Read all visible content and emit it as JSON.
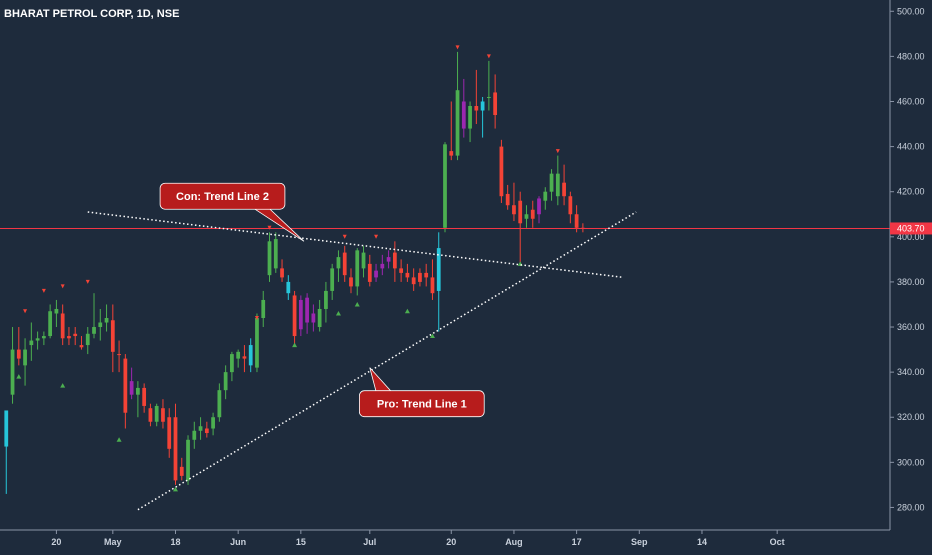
{
  "chart_data": {
    "type": "candlestick",
    "title": "BHARAT PETROL CORP, 1D, NSE",
    "ylim": [
      270,
      505
    ],
    "yticks": [
      "280.00",
      "300.00",
      "320.00",
      "340.00",
      "360.00",
      "380.00",
      "400.00",
      "420.00",
      "440.00",
      "460.00",
      "480.00",
      "500.00"
    ],
    "xlim": [
      -2,
      140
    ],
    "xticks": [
      {
        "label": "20",
        "at": 7
      },
      {
        "label": "May",
        "at": 16
      },
      {
        "label": "18",
        "at": 26
      },
      {
        "label": "Jun",
        "at": 36
      },
      {
        "label": "15",
        "at": 46
      },
      {
        "label": "Jul",
        "at": 57
      },
      {
        "label": "20",
        "at": 70
      },
      {
        "label": "Aug",
        "at": 80
      },
      {
        "label": "17",
        "at": 90
      },
      {
        "label": "Sep",
        "at": 100
      },
      {
        "label": "14",
        "at": 110
      },
      {
        "label": "Oct",
        "at": 122
      }
    ],
    "current_price": {
      "value": 403.7,
      "label": "403.70",
      "color": "#f23645"
    },
    "colors": {
      "background": "#1e2b3c",
      "up": "#4caf50",
      "down": "#f44336",
      "cyan": "#26c6da",
      "purple": "#9c27b0",
      "trendline": "#ffffff",
      "callout": "#b71c1c"
    },
    "candles": [
      {
        "t": -1,
        "o": 307,
        "h": 322,
        "l": 286,
        "c": 323,
        "k": "cyan"
      },
      {
        "t": 0,
        "o": 330,
        "h": 360,
        "l": 326,
        "c": 350,
        "k": "up"
      },
      {
        "t": 1,
        "o": 350,
        "h": 360,
        "l": 343,
        "c": 346,
        "k": "down"
      },
      {
        "t": 2,
        "o": 343,
        "h": 355,
        "l": 334,
        "c": 350,
        "k": "up"
      },
      {
        "t": 3,
        "o": 352,
        "h": 362,
        "l": 345,
        "c": 354,
        "k": "up"
      },
      {
        "t": 4,
        "o": 354,
        "h": 358,
        "l": 350,
        "c": 355,
        "k": "up"
      },
      {
        "t": 5,
        "o": 355,
        "h": 358,
        "l": 352,
        "c": 356,
        "k": "up"
      },
      {
        "t": 6,
        "o": 356,
        "h": 370,
        "l": 355,
        "c": 367,
        "k": "up"
      },
      {
        "t": 7,
        "o": 368,
        "h": 372,
        "l": 360,
        "c": 366,
        "k": "up"
      },
      {
        "t": 8,
        "o": 366,
        "h": 370,
        "l": 352,
        "c": 355,
        "k": "down"
      },
      {
        "t": 9,
        "o": 355,
        "h": 360,
        "l": 352,
        "c": 356,
        "k": "down"
      },
      {
        "t": 10,
        "o": 357,
        "h": 360,
        "l": 352,
        "c": 356,
        "k": "down"
      },
      {
        "t": 11,
        "o": 352,
        "h": 356,
        "l": 350,
        "c": 351,
        "k": "down"
      },
      {
        "t": 12,
        "o": 352,
        "h": 360,
        "l": 348,
        "c": 357,
        "k": "up"
      },
      {
        "t": 13,
        "o": 357,
        "h": 375,
        "l": 355,
        "c": 360,
        "k": "up"
      },
      {
        "t": 14,
        "o": 360,
        "h": 368,
        "l": 354,
        "c": 362,
        "k": "up"
      },
      {
        "t": 15,
        "o": 362,
        "h": 370,
        "l": 358,
        "c": 364,
        "k": "up"
      },
      {
        "t": 16,
        "o": 363,
        "h": 370,
        "l": 340,
        "c": 349,
        "k": "down"
      },
      {
        "t": 17,
        "o": 348,
        "h": 354,
        "l": 340,
        "c": 348,
        "k": "down"
      },
      {
        "t": 18,
        "o": 346,
        "h": 348,
        "l": 315,
        "c": 322,
        "k": "down"
      },
      {
        "t": 19,
        "o": 336,
        "h": 342,
        "l": 328,
        "c": 330,
        "k": "purple"
      },
      {
        "t": 20,
        "o": 330,
        "h": 336,
        "l": 320,
        "c": 333,
        "k": "up"
      },
      {
        "t": 21,
        "o": 333,
        "h": 335,
        "l": 322,
        "c": 325,
        "k": "down"
      },
      {
        "t": 22,
        "o": 324,
        "h": 326,
        "l": 316,
        "c": 318,
        "k": "down"
      },
      {
        "t": 23,
        "o": 318,
        "h": 326,
        "l": 316,
        "c": 325,
        "k": "up"
      },
      {
        "t": 24,
        "o": 324,
        "h": 328,
        "l": 315,
        "c": 318,
        "k": "down"
      },
      {
        "t": 25,
        "o": 320,
        "h": 324,
        "l": 302,
        "c": 306,
        "k": "down"
      },
      {
        "t": 26,
        "o": 320,
        "h": 326,
        "l": 290,
        "c": 292,
        "k": "down"
      },
      {
        "t": 27,
        "o": 298,
        "h": 302,
        "l": 292,
        "c": 294,
        "k": "down"
      },
      {
        "t": 28,
        "o": 292,
        "h": 312,
        "l": 290,
        "c": 310,
        "k": "up"
      },
      {
        "t": 29,
        "o": 310,
        "h": 318,
        "l": 306,
        "c": 314,
        "k": "up"
      },
      {
        "t": 30,
        "o": 314,
        "h": 320,
        "l": 310,
        "c": 316,
        "k": "up"
      },
      {
        "t": 31,
        "o": 315,
        "h": 318,
        "l": 311,
        "c": 313,
        "k": "down"
      },
      {
        "t": 32,
        "o": 315,
        "h": 322,
        "l": 312,
        "c": 320,
        "k": "up"
      },
      {
        "t": 33,
        "o": 320,
        "h": 335,
        "l": 318,
        "c": 332,
        "k": "up"
      },
      {
        "t": 34,
        "o": 332,
        "h": 343,
        "l": 328,
        "c": 340,
        "k": "up"
      },
      {
        "t": 35,
        "o": 340,
        "h": 349,
        "l": 336,
        "c": 348,
        "k": "up"
      },
      {
        "t": 36,
        "o": 346,
        "h": 350,
        "l": 342,
        "c": 349,
        "k": "up"
      },
      {
        "t": 37,
        "o": 347,
        "h": 352,
        "l": 340,
        "c": 346,
        "k": "down"
      },
      {
        "t": 38,
        "o": 343,
        "h": 355,
        "l": 340,
        "c": 352,
        "k": "cyan"
      },
      {
        "t": 39,
        "o": 342,
        "h": 366,
        "l": 340,
        "c": 364,
        "k": "up"
      },
      {
        "t": 40,
        "o": 364,
        "h": 376,
        "l": 360,
        "c": 372,
        "k": "up"
      },
      {
        "t": 41,
        "o": 383,
        "h": 402,
        "l": 380,
        "c": 398,
        "k": "up"
      },
      {
        "t": 42,
        "o": 399,
        "h": 402,
        "l": 384,
        "c": 386,
        "k": "up"
      },
      {
        "t": 43,
        "o": 386,
        "h": 390,
        "l": 380,
        "c": 382,
        "k": "down"
      },
      {
        "t": 44,
        "o": 380,
        "h": 383,
        "l": 372,
        "c": 375,
        "k": "cyan"
      },
      {
        "t": 45,
        "o": 374,
        "h": 376,
        "l": 352,
        "c": 356,
        "k": "down"
      },
      {
        "t": 46,
        "o": 372,
        "h": 374,
        "l": 356,
        "c": 359,
        "k": "purple"
      },
      {
        "t": 47,
        "o": 373,
        "h": 375,
        "l": 357,
        "c": 362,
        "k": "purple"
      },
      {
        "t": 48,
        "o": 366,
        "h": 370,
        "l": 358,
        "c": 362,
        "k": "purple"
      },
      {
        "t": 49,
        "o": 360,
        "h": 372,
        "l": 358,
        "c": 368,
        "k": "up"
      },
      {
        "t": 50,
        "o": 368,
        "h": 380,
        "l": 362,
        "c": 376,
        "k": "up"
      },
      {
        "t": 51,
        "o": 376,
        "h": 388,
        "l": 372,
        "c": 386,
        "k": "up"
      },
      {
        "t": 52,
        "o": 386,
        "h": 394,
        "l": 380,
        "c": 391,
        "k": "up"
      },
      {
        "t": 53,
        "o": 393,
        "h": 396,
        "l": 380,
        "c": 383,
        "k": "down"
      },
      {
        "t": 54,
        "o": 382,
        "h": 386,
        "l": 375,
        "c": 378,
        "k": "down"
      },
      {
        "t": 55,
        "o": 378,
        "h": 395,
        "l": 374,
        "c": 394,
        "k": "up"
      },
      {
        "t": 56,
        "o": 393,
        "h": 396,
        "l": 382,
        "c": 386,
        "k": "up"
      },
      {
        "t": 57,
        "o": 388,
        "h": 392,
        "l": 378,
        "c": 380,
        "k": "down"
      },
      {
        "t": 58,
        "o": 382,
        "h": 388,
        "l": 380,
        "c": 385,
        "k": "purple"
      },
      {
        "t": 59,
        "o": 386,
        "h": 392,
        "l": 383,
        "c": 388,
        "k": "purple"
      },
      {
        "t": 60,
        "o": 389,
        "h": 394,
        "l": 386,
        "c": 391,
        "k": "purple"
      },
      {
        "t": 61,
        "o": 393,
        "h": 398,
        "l": 380,
        "c": 386,
        "k": "down"
      },
      {
        "t": 62,
        "o": 386,
        "h": 390,
        "l": 380,
        "c": 384,
        "k": "down"
      },
      {
        "t": 63,
        "o": 384,
        "h": 388,
        "l": 380,
        "c": 382,
        "k": "down"
      },
      {
        "t": 64,
        "o": 382,
        "h": 386,
        "l": 376,
        "c": 379,
        "k": "down"
      },
      {
        "t": 65,
        "o": 384,
        "h": 386,
        "l": 378,
        "c": 380,
        "k": "down"
      },
      {
        "t": 66,
        "o": 384,
        "h": 388,
        "l": 378,
        "c": 382,
        "k": "down"
      },
      {
        "t": 67,
        "o": 382,
        "h": 390,
        "l": 372,
        "c": 375,
        "k": "down"
      },
      {
        "t": 68,
        "o": 376,
        "h": 402,
        "l": 358,
        "c": 395,
        "k": "cyan"
      },
      {
        "t": 69,
        "o": 404,
        "h": 442,
        "l": 402,
        "c": 441,
        "k": "up"
      },
      {
        "t": 70,
        "o": 438,
        "h": 460,
        "l": 434,
        "c": 436,
        "k": "down"
      },
      {
        "t": 71,
        "o": 436,
        "h": 482,
        "l": 434,
        "c": 465,
        "k": "up"
      },
      {
        "t": 72,
        "o": 460,
        "h": 470,
        "l": 444,
        "c": 448,
        "k": "purple"
      },
      {
        "t": 73,
        "o": 448,
        "h": 460,
        "l": 442,
        "c": 458,
        "k": "up"
      },
      {
        "t": 74,
        "o": 458,
        "h": 474,
        "l": 450,
        "c": 456,
        "k": "down"
      },
      {
        "t": 75,
        "o": 456,
        "h": 462,
        "l": 444,
        "c": 460,
        "k": "cyan"
      },
      {
        "t": 76,
        "o": 462,
        "h": 478,
        "l": 456,
        "c": 462,
        "k": "up"
      },
      {
        "t": 77,
        "o": 464,
        "h": 472,
        "l": 448,
        "c": 454,
        "k": "down"
      },
      {
        "t": 78,
        "o": 440,
        "h": 443,
        "l": 415,
        "c": 418,
        "k": "down"
      },
      {
        "t": 79,
        "o": 419,
        "h": 423,
        "l": 412,
        "c": 414,
        "k": "down"
      },
      {
        "t": 80,
        "o": 414,
        "h": 424,
        "l": 407,
        "c": 410,
        "k": "down"
      },
      {
        "t": 81,
        "o": 416,
        "h": 420,
        "l": 388,
        "c": 406,
        "k": "down"
      },
      {
        "t": 82,
        "o": 408,
        "h": 414,
        "l": 404,
        "c": 410,
        "k": "up"
      },
      {
        "t": 83,
        "o": 408,
        "h": 416,
        "l": 404,
        "c": 412,
        "k": "down"
      },
      {
        "t": 84,
        "o": 410,
        "h": 418,
        "l": 406,
        "c": 417,
        "k": "purple"
      },
      {
        "t": 85,
        "o": 416,
        "h": 422,
        "l": 412,
        "c": 420,
        "k": "up"
      },
      {
        "t": 86,
        "o": 420,
        "h": 430,
        "l": 416,
        "c": 428,
        "k": "up"
      },
      {
        "t": 87,
        "o": 428,
        "h": 436,
        "l": 414,
        "c": 418,
        "k": "up"
      },
      {
        "t": 88,
        "o": 424,
        "h": 432,
        "l": 414,
        "c": 418,
        "k": "down"
      },
      {
        "t": 89,
        "o": 418,
        "h": 420,
        "l": 406,
        "c": 410,
        "k": "down"
      },
      {
        "t": 90,
        "o": 410,
        "h": 414,
        "l": 402,
        "c": 404,
        "k": "down"
      },
      {
        "t": 91,
        "o": 404,
        "h": 406,
        "l": 402,
        "c": 403.7,
        "k": "down"
      }
    ],
    "markers_up": [
      {
        "t": 1,
        "p": 338
      },
      {
        "t": 8,
        "p": 334
      },
      {
        "t": 17,
        "p": 310
      },
      {
        "t": 26,
        "p": 288
      },
      {
        "t": 45,
        "p": 352
      },
      {
        "t": 52,
        "p": 366
      },
      {
        "t": 55,
        "p": 370
      },
      {
        "t": 63,
        "p": 367
      },
      {
        "t": 67,
        "p": 356
      },
      {
        "t": 81,
        "p": 388
      }
    ],
    "markers_down": [
      {
        "t": 2,
        "p": 367
      },
      {
        "t": 5,
        "p": 376
      },
      {
        "t": 8,
        "p": 378
      },
      {
        "t": 12,
        "p": 380
      },
      {
        "t": 39,
        "p": 364
      },
      {
        "t": 41,
        "p": 404
      },
      {
        "t": 53,
        "p": 400
      },
      {
        "t": 58,
        "p": 400
      },
      {
        "t": 71,
        "p": 484
      },
      {
        "t": 76,
        "p": 480
      },
      {
        "t": 87,
        "p": 438
      }
    ],
    "trendlines": [
      {
        "name": "Pro: Trend Line 1",
        "from": {
          "t": 20,
          "p": 279
        },
        "to": {
          "t": 99.5,
          "p": 411
        }
      },
      {
        "name": "Con: Trend Line 2",
        "from": {
          "t": 12,
          "p": 411
        },
        "to": {
          "t": 97.5,
          "p": 382
        }
      }
    ],
    "annotations": [
      {
        "text": "Con: Trend Line 2",
        "box_center": {
          "t": 33.5,
          "p": 418
        },
        "tip": {
          "t": 46.5,
          "p": 398
        }
      },
      {
        "text": "Pro: Trend Line 1",
        "box_center": {
          "t": 65.3,
          "p": 326
        },
        "tip": {
          "t": 57,
          "p": 342
        }
      }
    ]
  }
}
